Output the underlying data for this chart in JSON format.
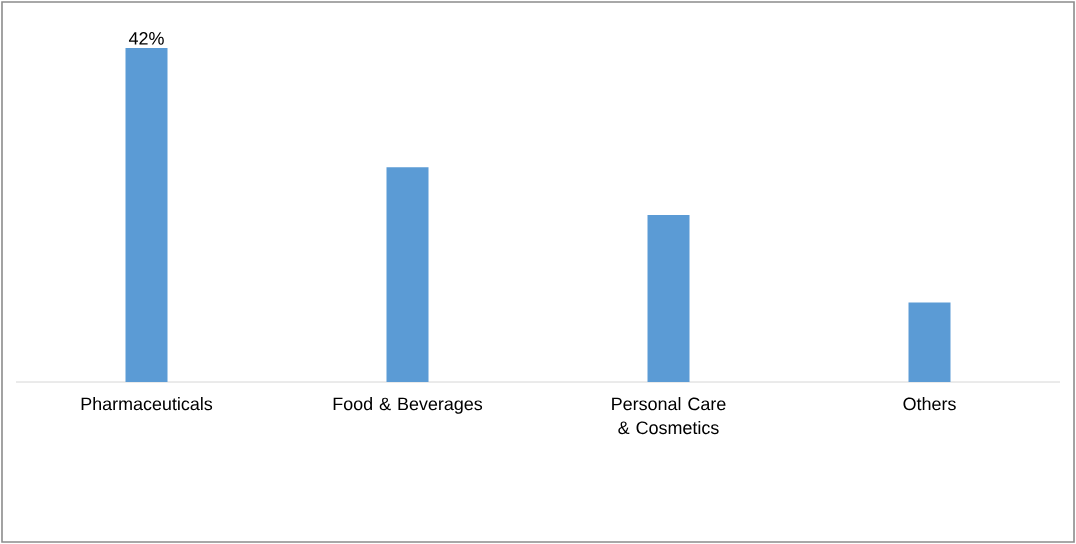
{
  "chart_data": {
    "type": "bar",
    "categories": [
      "Pharmaceuticals",
      "Food & Beverages",
      "Personal Care & Cosmetics",
      "Others"
    ],
    "values": [
      42,
      27,
      21,
      10
    ],
    "value_labels": [
      "42%",
      null,
      null,
      null
    ],
    "color": "#5b9bd5"
  }
}
